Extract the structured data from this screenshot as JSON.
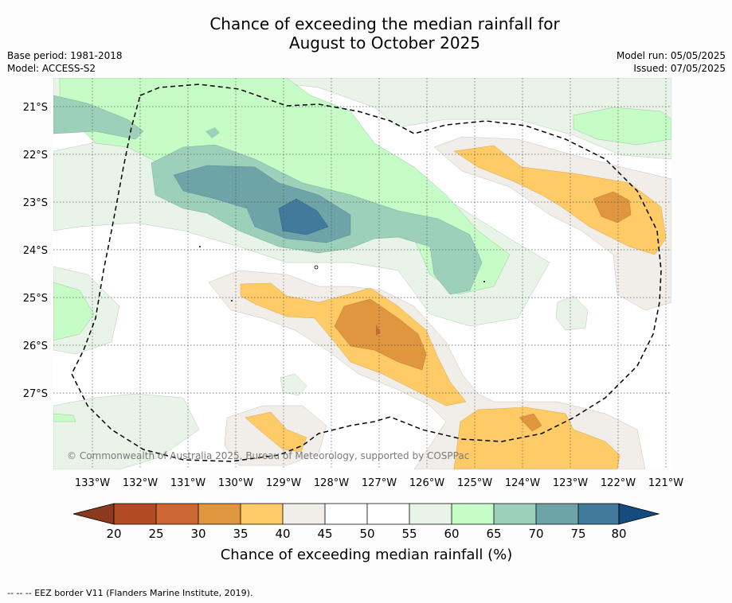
{
  "title_line1": "Chance of exceeding the median rainfall for",
  "title_line2": "August to October 2025",
  "base_period": "Base period: 1981-2018",
  "model": "Model: ACCESS-S2",
  "model_run": "Model run: 05/05/2025",
  "issued": "Issued: 07/05/2025",
  "copyright": "© Commonwealth of Australia 2025, Bureau of Meteorology, supported by COSPPac",
  "colorbar_label": "Chance of exceeding median rainfall (%)",
  "eez_note": "--  --  -- EEZ border V11 (Flanders Marine Institute, 2019).",
  "map": {
    "lon_labels": [
      "133°W",
      "132°W",
      "131°W",
      "130°W",
      "129°W",
      "128°W",
      "127°W",
      "126°W",
      "125°W",
      "124°W",
      "123°W",
      "122°W",
      "121°W"
    ],
    "lat_labels": [
      "21°S",
      "22°S",
      "23°S",
      "24°S",
      "25°S",
      "26°S",
      "27°S"
    ]
  },
  "colorbar": {
    "ticks": [
      "20",
      "25",
      "30",
      "35",
      "40",
      "45",
      "50",
      "55",
      "60",
      "65",
      "70",
      "75",
      "80"
    ],
    "colors": [
      "#8c3a1e",
      "#b24a24",
      "#cd6733",
      "#e0953f",
      "#fecb66",
      "#f1eeea",
      "#ffffff",
      "#ffffff",
      "#e9f4e9",
      "#c6fcc6",
      "#9dd0bb",
      "#6ea3a8",
      "#417a9b",
      "#154c7e"
    ]
  }
}
